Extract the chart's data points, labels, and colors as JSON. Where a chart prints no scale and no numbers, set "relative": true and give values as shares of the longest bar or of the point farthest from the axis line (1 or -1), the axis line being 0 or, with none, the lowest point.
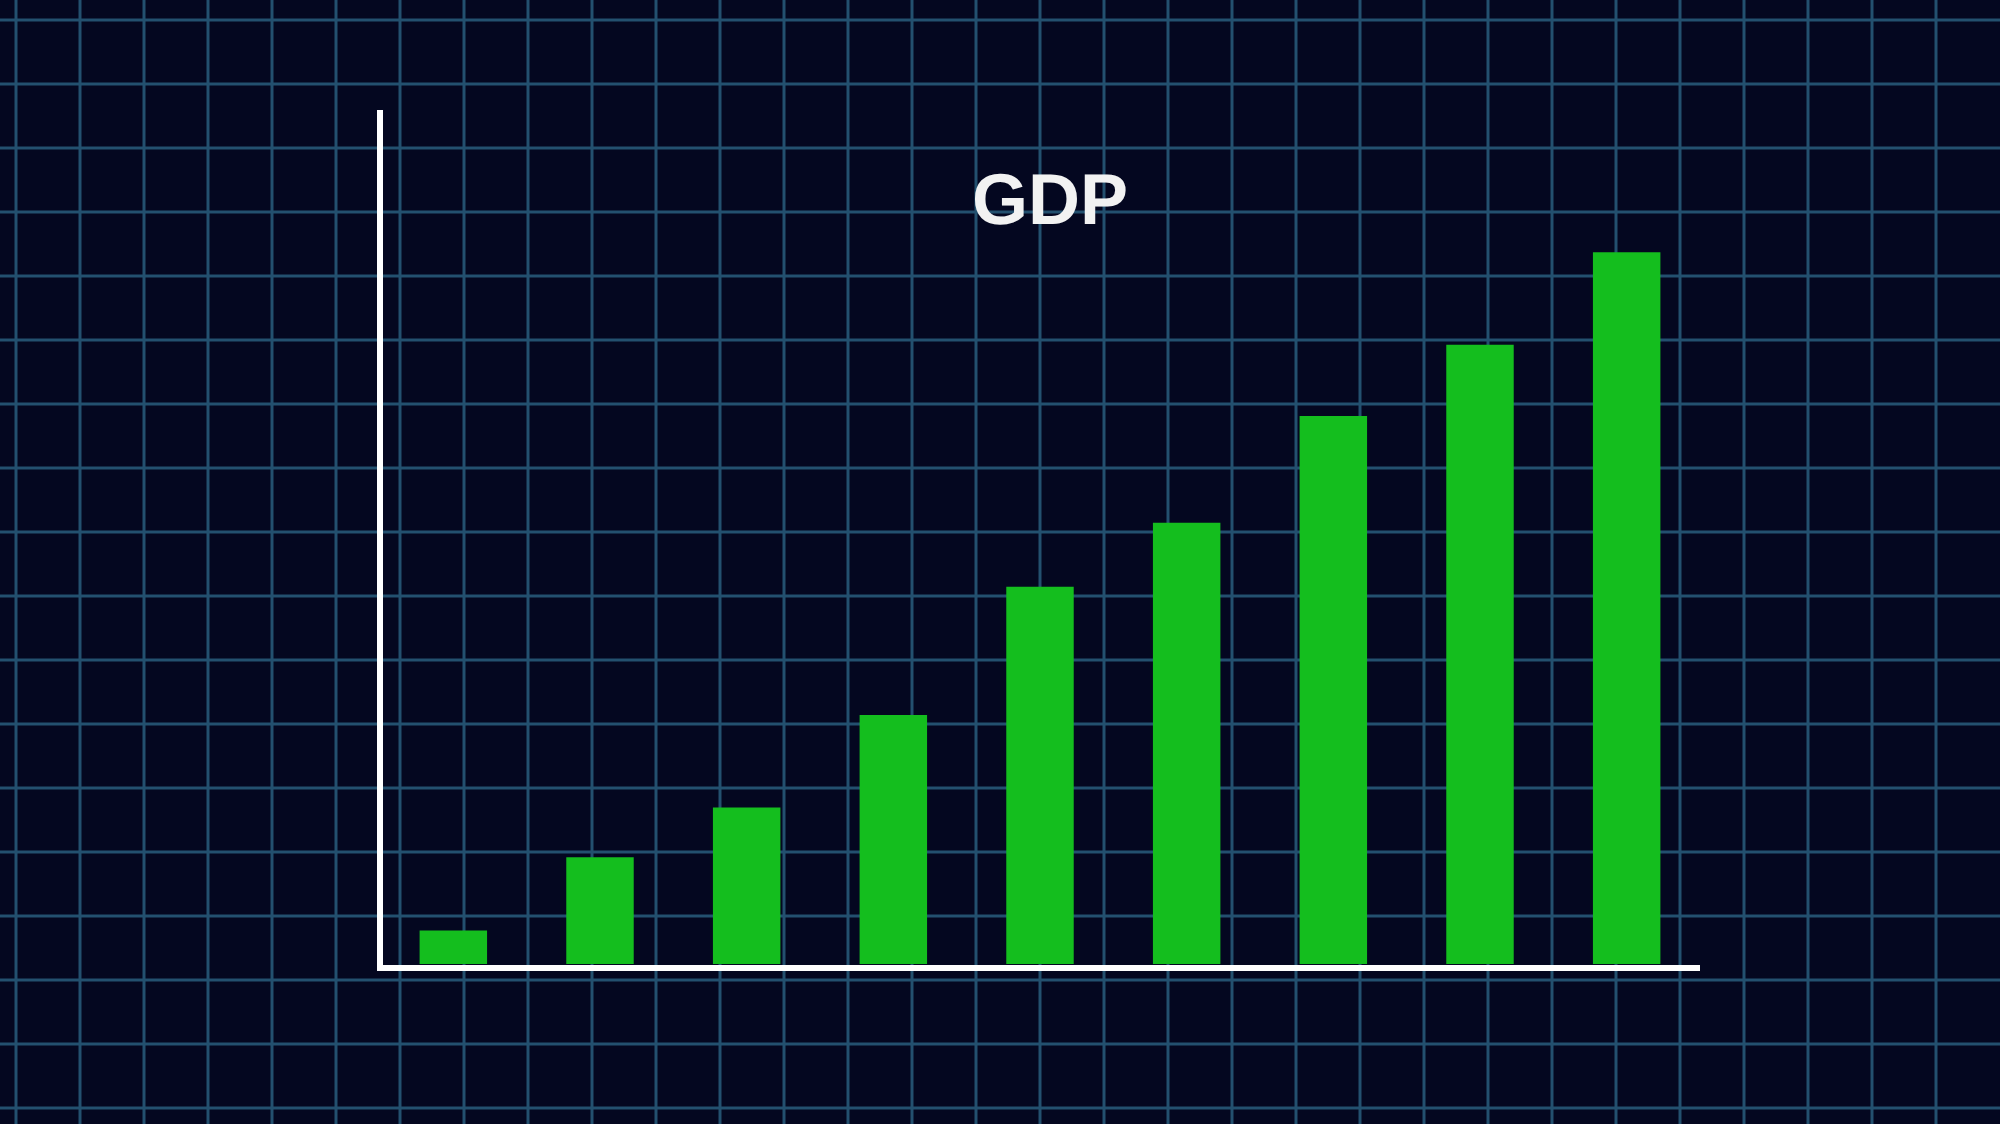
{
  "chart_data": {
    "type": "bar",
    "title": "GDP",
    "relative": true,
    "grid": true,
    "color": "#14be1e",
    "categories": [
      null,
      null,
      null,
      null,
      null,
      null,
      null,
      null,
      null
    ],
    "values": [
      0.047,
      0.15,
      0.22,
      0.35,
      0.53,
      0.62,
      0.77,
      0.87,
      1
    ]
  }
}
